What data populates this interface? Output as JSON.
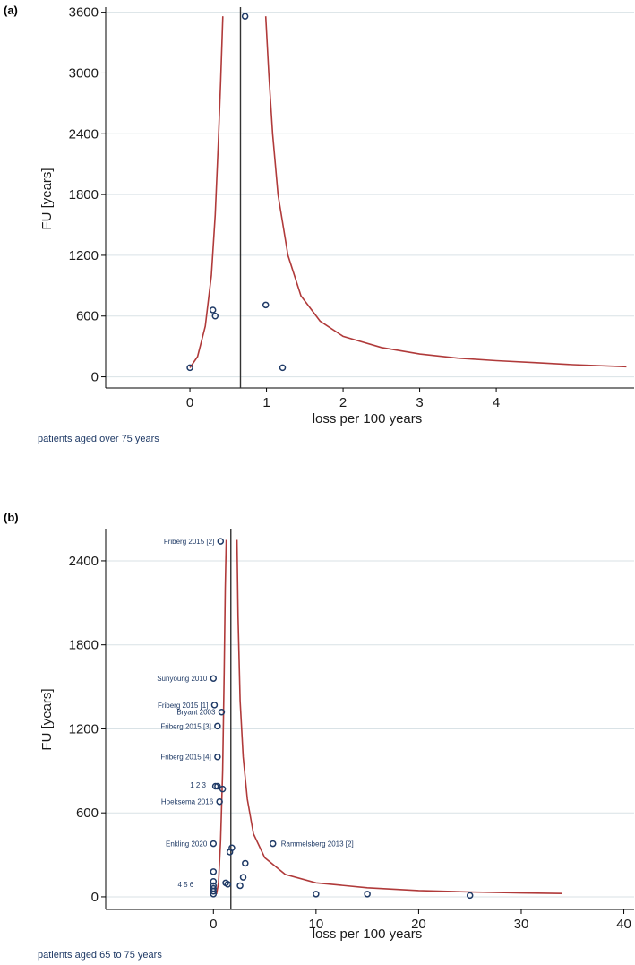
{
  "chart_data": [
    {
      "type": "scatter",
      "panel_label": "(a)",
      "xlabel": "loss per 100 years",
      "ylabel": "FU [years]",
      "note": "patients aged over 75 years",
      "x_ticks": [
        0,
        1,
        2,
        3,
        4
      ],
      "y_ticks": [
        0,
        600,
        1200,
        1800,
        2400,
        3000,
        3600
      ],
      "xlim": [
        -1.1,
        5.8
      ],
      "ylim": [
        -110,
        3650
      ],
      "grid": true,
      "pooled_estimate": 0.66,
      "funnel_color": "#b03a3a",
      "point_color": "#1f3a66",
      "funnel_left": [
        [
          0.0,
          90
        ],
        [
          0.1,
          200
        ],
        [
          0.2,
          500
        ],
        [
          0.28,
          1000
        ],
        [
          0.33,
          1600
        ],
        [
          0.37,
          2300
        ],
        [
          0.4,
          2900
        ],
        [
          0.43,
          3560
        ]
      ],
      "funnel_right": [
        [
          0.99,
          3560
        ],
        [
          1.03,
          3000
        ],
        [
          1.08,
          2400
        ],
        [
          1.15,
          1800
        ],
        [
          1.28,
          1200
        ],
        [
          1.45,
          800
        ],
        [
          1.7,
          550
        ],
        [
          2.0,
          400
        ],
        [
          2.5,
          290
        ],
        [
          3.0,
          225
        ],
        [
          3.5,
          185
        ],
        [
          4.0,
          160
        ],
        [
          4.5,
          140
        ],
        [
          5.0,
          120
        ],
        [
          5.7,
          100
        ]
      ],
      "points": [
        {
          "x": 0.0,
          "y": 90
        },
        {
          "x": 0.3,
          "y": 660
        },
        {
          "x": 0.33,
          "y": 600
        },
        {
          "x": 0.72,
          "y": 3560
        },
        {
          "x": 0.99,
          "y": 710
        },
        {
          "x": 1.21,
          "y": 90
        }
      ]
    },
    {
      "type": "scatter",
      "panel_label": "(b)",
      "xlabel": "loss per 100 years",
      "ylabel": "FU [years]",
      "note": "patients aged 65 to 75 years",
      "x_ticks": [
        0,
        10,
        20,
        30,
        40
      ],
      "y_ticks": [
        0,
        600,
        1200,
        1800,
        2400
      ],
      "xlim": [
        -10.5,
        41
      ],
      "ylim": [
        -90,
        2630
      ],
      "grid": true,
      "pooled_estimate": 1.7,
      "funnel_color": "#b03a3a",
      "point_color": "#1f3a66",
      "funnel_left": [
        [
          0.3,
          20
        ],
        [
          0.5,
          100
        ],
        [
          0.7,
          400
        ],
        [
          0.9,
          900
        ],
        [
          1.05,
          1600
        ],
        [
          1.15,
          2200
        ],
        [
          1.25,
          2550
        ]
      ],
      "funnel_right": [
        [
          2.3,
          2550
        ],
        [
          2.4,
          2000
        ],
        [
          2.6,
          1400
        ],
        [
          2.9,
          1000
        ],
        [
          3.3,
          700
        ],
        [
          3.9,
          450
        ],
        [
          5.0,
          280
        ],
        [
          7.0,
          160
        ],
        [
          10.0,
          100
        ],
        [
          15.0,
          65
        ],
        [
          20.0,
          45
        ],
        [
          25.0,
          35
        ],
        [
          30.0,
          28
        ],
        [
          34.0,
          24
        ]
      ],
      "points": [
        {
          "x": 0.7,
          "y": 2540,
          "label": "Friberg 2015 [2]"
        },
        {
          "x": 0.0,
          "y": 1560,
          "label": "Sunyoung 2010"
        },
        {
          "x": 0.1,
          "y": 1370,
          "label": "Friberg 2015 [1]"
        },
        {
          "x": 0.8,
          "y": 1320,
          "label": "Bryant 2003"
        },
        {
          "x": 0.4,
          "y": 1220,
          "label": "Friberg 2015 [3]"
        },
        {
          "x": 0.4,
          "y": 1000,
          "label": "Friberg 2015 [4]"
        },
        {
          "x": 0.2,
          "y": 790
        },
        {
          "x": 0.4,
          "y": 790
        },
        {
          "x": 0.9,
          "y": 770
        },
        {
          "x": 0.6,
          "y": 680,
          "label": "Hoeksema 2016"
        },
        {
          "x": 0.0,
          "y": 380,
          "label": "Enkling 2020"
        },
        {
          "x": 5.8,
          "y": 380,
          "label": "Rammelsberg 2013 [2]"
        },
        {
          "x": 1.8,
          "y": 350
        },
        {
          "x": 1.6,
          "y": 320
        },
        {
          "x": 3.1,
          "y": 240
        },
        {
          "x": 0.0,
          "y": 180
        },
        {
          "x": 2.9,
          "y": 140
        },
        {
          "x": 0.0,
          "y": 110
        },
        {
          "x": 1.2,
          "y": 100
        },
        {
          "x": 1.4,
          "y": 90
        },
        {
          "x": 0.0,
          "y": 80
        },
        {
          "x": 2.6,
          "y": 80
        },
        {
          "x": 0.0,
          "y": 60
        },
        {
          "x": 0.0,
          "y": 40
        },
        {
          "x": 0.0,
          "y": 20
        },
        {
          "x": 10.0,
          "y": 20
        },
        {
          "x": 15.0,
          "y": 20
        },
        {
          "x": 25.0,
          "y": 10
        }
      ],
      "extra_labels": [
        {
          "text": "1 2 3",
          "x": -1.5,
          "y": 800
        },
        {
          "text": "4 5 6",
          "x": -2.7,
          "y": 90
        }
      ]
    }
  ]
}
